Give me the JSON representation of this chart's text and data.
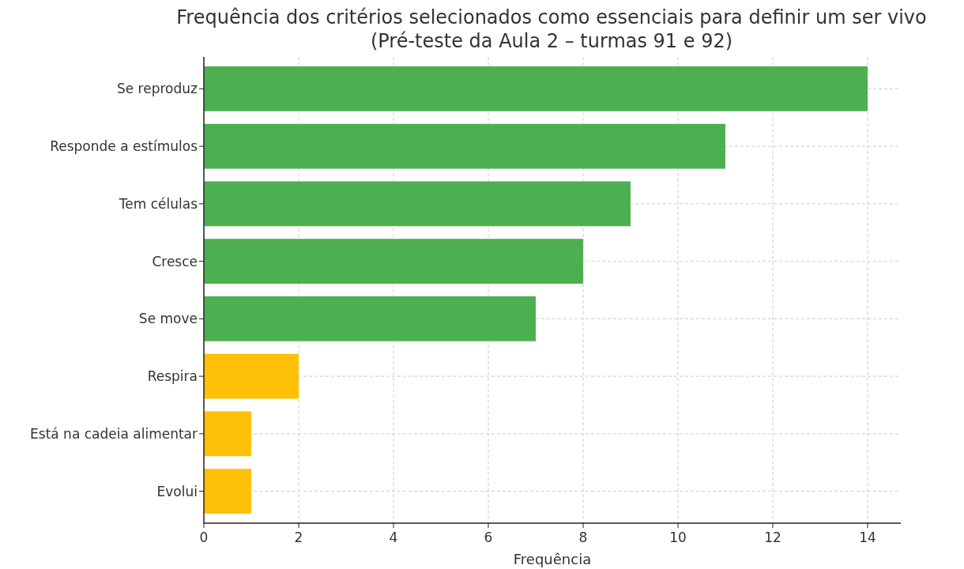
{
  "chart_data": {
    "type": "bar",
    "orientation": "horizontal",
    "title": "Frequência dos critérios selecionados como essenciais para definir um ser vivo\n(Pré-teste da Aula 2 – turmas 91 e 92)",
    "xlabel": "Frequência",
    "categories": [
      "Se reproduz",
      "Responde a estímulos",
      "Tem células",
      "Cresce",
      "Se move",
      "Respira",
      "Está na cadeia alimentar",
      "Evolui"
    ],
    "values": [
      14,
      11,
      9,
      8,
      7,
      2,
      1,
      1
    ],
    "colors": [
      "#4caf50",
      "#4caf50",
      "#4caf50",
      "#4caf50",
      "#4caf50",
      "#ffc107",
      "#ffc107",
      "#ffc107"
    ],
    "xlim": [
      0,
      14.7
    ],
    "xticks": [
      0,
      2,
      4,
      6,
      8,
      10,
      12,
      14
    ],
    "grid": true
  }
}
